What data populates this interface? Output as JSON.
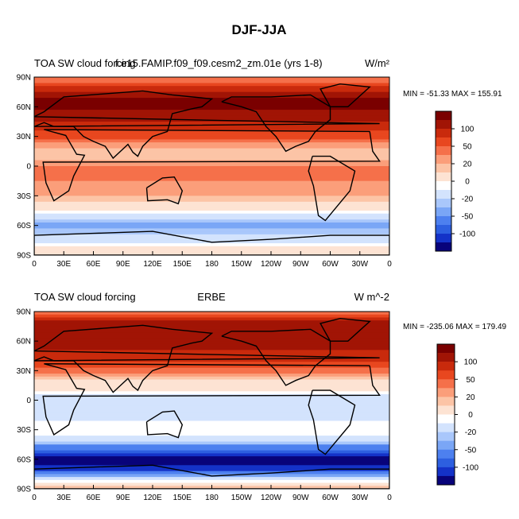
{
  "title": "DJF-JJA",
  "chart_data": [
    {
      "type": "heatmap",
      "variable": "TOA SW cloud forcing",
      "case": "f.e15.FAMIP.f09_f09.cesm2_zm.01e (yrs 1-8)",
      "units_superscript": "W/m²",
      "stats": "MIN = -51.33 MAX = 155.91",
      "colorbar_ticks": [
        "100",
        "50",
        "20",
        "0",
        "-20",
        "-50",
        "-100"
      ],
      "x_ticks": [
        "0",
        "30E",
        "60E",
        "90E",
        "120E",
        "150E",
        "180",
        "150W",
        "120W",
        "90W",
        "60W",
        "30W",
        "0"
      ],
      "y_ticks": [
        "90N",
        "60N",
        "30N",
        "0",
        "30S",
        "60S",
        "90S"
      ],
      "xlim": [
        0,
        360
      ],
      "ylim": [
        -90,
        90
      ],
      "zonal_profile_lat": [
        90,
        80,
        70,
        60,
        50,
        40,
        30,
        20,
        10,
        0,
        -10,
        -20,
        -30,
        -40,
        -50,
        -60,
        -70,
        -80,
        -90
      ],
      "zonal_profile_value": [
        30,
        70,
        110,
        115,
        100,
        80,
        55,
        25,
        10,
        35,
        40,
        30,
        20,
        5,
        -25,
        -55,
        -40,
        -10,
        -5
      ]
    },
    {
      "type": "heatmap",
      "variable": "TOA SW cloud forcing",
      "case": "ERBE",
      "units": "W m^-2",
      "stats": "MIN = -235.06 MAX = 179.49",
      "colorbar_ticks": [
        "100",
        "50",
        "20",
        "0",
        "-20",
        "-50",
        "-100"
      ],
      "x_ticks": [
        "0",
        "30E",
        "60E",
        "90E",
        "120E",
        "150E",
        "180",
        "150W",
        "120W",
        "90W",
        "60W",
        "30W",
        "0"
      ],
      "y_ticks": [
        "90N",
        "60N",
        "30N",
        "0",
        "30S",
        "60S",
        "90S"
      ],
      "xlim": [
        0,
        360
      ],
      "ylim": [
        -90,
        90
      ],
      "zonal_profile_lat": [
        90,
        80,
        70,
        60,
        50,
        40,
        30,
        20,
        10,
        0,
        -10,
        -20,
        -30,
        -40,
        -50,
        -60,
        -70,
        -80,
        -90
      ],
      "zonal_profile_value": [
        40,
        90,
        110,
        105,
        90,
        70,
        40,
        10,
        -10,
        -30,
        -40,
        -20,
        -10,
        -30,
        -80,
        -130,
        -110,
        -20,
        20
      ]
    }
  ],
  "colors": {
    "levels": [
      "#08037a",
      "#1432c8",
      "#2d5fe0",
      "#4d80ef",
      "#7aa6f6",
      "#a9c7fb",
      "#d3e3fd",
      "#ffffff",
      "#fde3d3",
      "#fcc4a6",
      "#fb9e7a",
      "#f5704a",
      "#e8471f",
      "#c92a0c",
      "#a11405",
      "#7a0000"
    ],
    "land": "#000000"
  }
}
